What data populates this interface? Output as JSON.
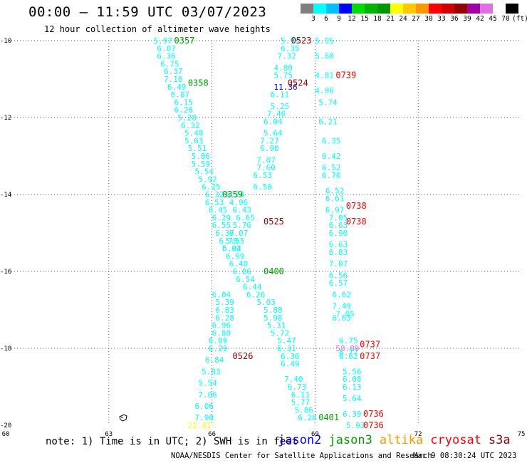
{
  "title": "00:00 – 11:59 UTC 03/07/2023",
  "subtitle": "12 hour collection of altimeter wave heights",
  "legend": {
    "colors": [
      "#7f7f7f",
      "#00ffff",
      "#00c0ff",
      "#0000ff",
      "#00dc00",
      "#00b400",
      "#009600",
      "#ffff00",
      "#ffc800",
      "#ff9600",
      "#ff0000",
      "#d20000",
      "#960000",
      "#a000a0",
      "#e070e0",
      "#ffffff",
      "#000000"
    ],
    "labels": [
      "3",
      "6",
      "9",
      "12",
      "15",
      "18",
      "21",
      "24",
      "27",
      "30",
      "33",
      "36",
      "39",
      "42",
      "45",
      "70",
      "(ft)"
    ]
  },
  "note": "note: 1) Time is in UTC; 2) SWH is in feet",
  "satellites": [
    {
      "name": "jason2",
      "color": "#0000ff"
    },
    {
      "name": "jason3",
      "color": "#00a000"
    },
    {
      "name": "altika",
      "color": "#ff9600"
    },
    {
      "name": "cryosat",
      "color": "#ff0000"
    },
    {
      "name": "s3a",
      "color": "#990000"
    }
  ],
  "credit": "NOAA/NESDIS Center for Satellite Applications and Research",
  "credit_time": "Mar  9 08:30:24 UTC 2023",
  "chart_data": {
    "type": "scatter",
    "xlim": [
      60,
      75
    ],
    "ylim": [
      -20,
      -10
    ],
    "x_ticks": [
      60,
      63,
      66,
      69,
      72,
      75
    ],
    "y_ticks": [
      -10,
      -12,
      -14,
      -16,
      -18,
      -20
    ],
    "grid": true,
    "swh_points": [
      {
        "x": 64.3,
        "y": -10.0,
        "label": "5.97",
        "color": "#00ffff"
      },
      {
        "x": 64.4,
        "y": -10.2,
        "label": "6.07",
        "color": "#00ffff"
      },
      {
        "x": 64.4,
        "y": -10.4,
        "label": "6.36",
        "color": "#00ffff"
      },
      {
        "x": 64.5,
        "y": -10.6,
        "label": "6.75",
        "color": "#00ffff"
      },
      {
        "x": 64.6,
        "y": -10.8,
        "label": "6.37",
        "color": "#00ffff"
      },
      {
        "x": 64.6,
        "y": -11.0,
        "label": "7.10",
        "color": "#00ffff"
      },
      {
        "x": 64.7,
        "y": -11.2,
        "label": "6.49",
        "color": "#00ffff"
      },
      {
        "x": 64.8,
        "y": -11.4,
        "label": "6.87",
        "color": "#00ffff"
      },
      {
        "x": 64.9,
        "y": -11.6,
        "label": "6.15",
        "color": "#00ffff"
      },
      {
        "x": 64.9,
        "y": -11.8,
        "label": "6.26",
        "color": "#00ffff"
      },
      {
        "x": 65.0,
        "y": -12.0,
        "label": "5.28",
        "color": "#00ffff"
      },
      {
        "x": 65.1,
        "y": -12.2,
        "label": "6.32",
        "color": "#00ffff"
      },
      {
        "x": 65.2,
        "y": -12.4,
        "label": "5.48",
        "color": "#00ffff"
      },
      {
        "x": 65.2,
        "y": -12.6,
        "label": "5.63",
        "color": "#00ffff"
      },
      {
        "x": 65.3,
        "y": -12.8,
        "label": "5.51",
        "color": "#00ffff"
      },
      {
        "x": 65.4,
        "y": -13.0,
        "label": "5.86",
        "color": "#00ffff"
      },
      {
        "x": 65.4,
        "y": -13.2,
        "label": "5.59",
        "color": "#00ffff"
      },
      {
        "x": 65.5,
        "y": -13.4,
        "label": "5.54",
        "color": "#00ffff"
      },
      {
        "x": 65.6,
        "y": -13.6,
        "label": "5.92",
        "color": "#00ffff"
      },
      {
        "x": 65.7,
        "y": -13.8,
        "label": "6.25",
        "color": "#00ffff"
      },
      {
        "x": 65.8,
        "y": -14.0,
        "label": "6.32",
        "color": "#00ffff"
      },
      {
        "x": 65.8,
        "y": -14.2,
        "label": "6.53",
        "color": "#00ffff"
      },
      {
        "x": 65.9,
        "y": -14.4,
        "label": "6.45",
        "color": "#00ffff"
      },
      {
        "x": 66.0,
        "y": -14.6,
        "label": "6.29",
        "color": "#00ffff"
      },
      {
        "x": 66.0,
        "y": -14.8,
        "label": "6.55",
        "color": "#00ffff"
      },
      {
        "x": 66.1,
        "y": -15.0,
        "label": "6.37",
        "color": "#00ffff"
      },
      {
        "x": 66.2,
        "y": -15.2,
        "label": "6.70",
        "color": "#00ffff"
      },
      {
        "x": 66.3,
        "y": -15.4,
        "label": "6.82",
        "color": "#00ffff"
      },
      {
        "x": 66.4,
        "y": -15.6,
        "label": "6.99",
        "color": "#00ffff"
      },
      {
        "x": 66.5,
        "y": -15.8,
        "label": "6.40",
        "color": "#00ffff"
      },
      {
        "x": 66.6,
        "y": -16.0,
        "label": "6.86",
        "color": "#00ffff"
      },
      {
        "x": 66.7,
        "y": -16.2,
        "label": "6.54",
        "color": "#00ffff"
      },
      {
        "x": 66.9,
        "y": -16.4,
        "label": "6.44",
        "color": "#00ffff"
      },
      {
        "x": 67.0,
        "y": -16.6,
        "label": "6.26",
        "color": "#00ffff"
      },
      {
        "x": 67.3,
        "y": -16.8,
        "label": "5.03",
        "color": "#00ffff"
      },
      {
        "x": 67.5,
        "y": -17.0,
        "label": "5.88",
        "color": "#00ffff"
      },
      {
        "x": 67.5,
        "y": -17.2,
        "label": "5.98",
        "color": "#00ffff"
      },
      {
        "x": 67.6,
        "y": -17.4,
        "label": "5.31",
        "color": "#00ffff"
      },
      {
        "x": 67.7,
        "y": -17.6,
        "label": "5.72",
        "color": "#00ffff"
      },
      {
        "x": 67.9,
        "y": -17.8,
        "label": "5.47",
        "color": "#00ffff"
      },
      {
        "x": 67.9,
        "y": -18.0,
        "label": "6.31",
        "color": "#00ffff"
      },
      {
        "x": 68.0,
        "y": -18.2,
        "label": "6.36",
        "color": "#00ffff"
      },
      {
        "x": 68.0,
        "y": -18.4,
        "label": "6.49",
        "color": "#00ffff"
      },
      {
        "x": 68.1,
        "y": -18.8,
        "label": "7.40",
        "color": "#00ffff"
      },
      {
        "x": 68.2,
        "y": -19.0,
        "label": "6.73",
        "color": "#00ffff"
      },
      {
        "x": 68.3,
        "y": -19.2,
        "label": "6.11",
        "color": "#00ffff"
      },
      {
        "x": 68.3,
        "y": -19.4,
        "label": "5.77",
        "color": "#00ffff"
      },
      {
        "x": 68.4,
        "y": -19.6,
        "label": "5.86",
        "color": "#00ffff"
      },
      {
        "x": 68.5,
        "y": -19.8,
        "label": "6.28",
        "color": "#00ffff"
      },
      {
        "x": 66.4,
        "y": -14.0,
        "label": "6.74",
        "color": "#00ffff"
      },
      {
        "x": 66.5,
        "y": -14.2,
        "label": "4.96",
        "color": "#00ffff"
      },
      {
        "x": 66.6,
        "y": -14.4,
        "label": "6.43",
        "color": "#00ffff"
      },
      {
        "x": 66.7,
        "y": -14.6,
        "label": "6.65",
        "color": "#00ffff"
      },
      {
        "x": 66.6,
        "y": -14.8,
        "label": "5.76",
        "color": "#00ffff"
      },
      {
        "x": 66.5,
        "y": -15.0,
        "label": "6.07",
        "color": "#00ffff"
      },
      {
        "x": 66.4,
        "y": -15.2,
        "label": "5.55",
        "color": "#00ffff"
      },
      {
        "x": 66.3,
        "y": -15.4,
        "label": "5.94",
        "color": "#00ffff"
      },
      {
        "x": 66.0,
        "y": -16.6,
        "label": "6.04",
        "color": "#00ffff"
      },
      {
        "x": 66.1,
        "y": -16.8,
        "label": "5.39",
        "color": "#00ffff"
      },
      {
        "x": 66.1,
        "y": -17.0,
        "label": "6.83",
        "color": "#00ffff"
      },
      {
        "x": 66.1,
        "y": -17.2,
        "label": "6.28",
        "color": "#00ffff"
      },
      {
        "x": 66.0,
        "y": -17.4,
        "label": "6.96",
        "color": "#00ffff"
      },
      {
        "x": 66.0,
        "y": -17.6,
        "label": "6.80",
        "color": "#00ffff"
      },
      {
        "x": 65.9,
        "y": -17.8,
        "label": "6.09",
        "color": "#00ffff"
      },
      {
        "x": 65.9,
        "y": -18.0,
        "label": "6.29",
        "color": "#00ffff"
      },
      {
        "x": 65.8,
        "y": -18.3,
        "label": "6.84",
        "color": "#00ffff"
      },
      {
        "x": 65.7,
        "y": -18.6,
        "label": "5.83",
        "color": "#00ffff"
      },
      {
        "x": 65.6,
        "y": -18.9,
        "label": "5.54",
        "color": "#00ffff"
      },
      {
        "x": 65.6,
        "y": -19.2,
        "label": "7.06",
        "color": "#00ffff"
      },
      {
        "x": 65.5,
        "y": -19.5,
        "label": "6.06",
        "color": "#00ffff"
      },
      {
        "x": 65.5,
        "y": -19.8,
        "label": "7.90",
        "color": "#00ffff"
      },
      {
        "x": 65.3,
        "y": -20.0,
        "label": "22.81",
        "color": "#ffff00"
      },
      {
        "x": 68.0,
        "y": -10.0,
        "label": "5.95",
        "color": "#00ffff"
      },
      {
        "x": 68.0,
        "y": -10.2,
        "label": "6.35",
        "color": "#00ffff"
      },
      {
        "x": 67.9,
        "y": -10.4,
        "label": "7.32",
        "color": "#00ffff"
      },
      {
        "x": 67.8,
        "y": -10.7,
        "label": "4.80",
        "color": "#00ffff"
      },
      {
        "x": 67.8,
        "y": -10.9,
        "label": "5.75",
        "color": "#00ffff"
      },
      {
        "x": 67.8,
        "y": -11.2,
        "label": "11.36",
        "color": "#0000ff"
      },
      {
        "x": 67.7,
        "y": -11.4,
        "label": "6.11",
        "color": "#00ffff"
      },
      {
        "x": 67.7,
        "y": -11.7,
        "label": "5.25",
        "color": "#00ffff"
      },
      {
        "x": 67.6,
        "y": -11.9,
        "label": "7.46",
        "color": "#00ffff"
      },
      {
        "x": 67.5,
        "y": -12.1,
        "label": "6.04",
        "color": "#00ffff"
      },
      {
        "x": 67.5,
        "y": -12.4,
        "label": "5.64",
        "color": "#00ffff"
      },
      {
        "x": 67.4,
        "y": -12.6,
        "label": "7.27",
        "color": "#00ffff"
      },
      {
        "x": 67.4,
        "y": -12.8,
        "label": "6.90",
        "color": "#00ffff"
      },
      {
        "x": 67.3,
        "y": -13.1,
        "label": "7.07",
        "color": "#00ffff"
      },
      {
        "x": 67.3,
        "y": -13.3,
        "label": "7.60",
        "color": "#00ffff"
      },
      {
        "x": 67.2,
        "y": -13.5,
        "label": "6.53",
        "color": "#00ffff"
      },
      {
        "x": 67.2,
        "y": -13.8,
        "label": "6.50",
        "color": "#00ffff"
      },
      {
        "x": 69.0,
        "y": -10.0,
        "label": "5.95",
        "color": "#00ffff"
      },
      {
        "x": 69.0,
        "y": -10.4,
        "label": "5.60",
        "color": "#00ffff"
      },
      {
        "x": 69.0,
        "y": -10.9,
        "label": "4.81",
        "color": "#00ffff"
      },
      {
        "x": 69.0,
        "y": -11.3,
        "label": "4.96",
        "color": "#00ffff"
      },
      {
        "x": 69.1,
        "y": -11.6,
        "label": "5.74",
        "color": "#00ffff"
      },
      {
        "x": 69.1,
        "y": -12.1,
        "label": "6.21",
        "color": "#00ffff"
      },
      {
        "x": 69.2,
        "y": -12.6,
        "label": "6.35",
        "color": "#00ffff"
      },
      {
        "x": 69.2,
        "y": -13.0,
        "label": "6.42",
        "color": "#00ffff"
      },
      {
        "x": 69.2,
        "y": -13.3,
        "label": "6.52",
        "color": "#00ffff"
      },
      {
        "x": 69.2,
        "y": -13.5,
        "label": "6.76",
        "color": "#00ffff"
      },
      {
        "x": 69.3,
        "y": -13.9,
        "label": "6.52",
        "color": "#00ffff"
      },
      {
        "x": 69.3,
        "y": -14.1,
        "label": "6.61",
        "color": "#00ffff"
      },
      {
        "x": 69.3,
        "y": -14.4,
        "label": "6.97",
        "color": "#00ffff"
      },
      {
        "x": 69.4,
        "y": -14.6,
        "label": "7.05",
        "color": "#00ffff"
      },
      {
        "x": 69.4,
        "y": -14.8,
        "label": "6.63",
        "color": "#00ffff"
      },
      {
        "x": 69.4,
        "y": -15.0,
        "label": "6.90",
        "color": "#00ffff"
      },
      {
        "x": 69.4,
        "y": -15.3,
        "label": "6.63",
        "color": "#00ffff"
      },
      {
        "x": 69.4,
        "y": -15.5,
        "label": "6.83",
        "color": "#00ffff"
      },
      {
        "x": 69.4,
        "y": -15.8,
        "label": "7.07",
        "color": "#00ffff"
      },
      {
        "x": 69.4,
        "y": -16.1,
        "label": "6.56",
        "color": "#00ffff"
      },
      {
        "x": 69.4,
        "y": -16.3,
        "label": "6.57",
        "color": "#00ffff"
      },
      {
        "x": 69.5,
        "y": -16.6,
        "label": "6.62",
        "color": "#00ffff"
      },
      {
        "x": 69.5,
        "y": -16.9,
        "label": "7.49",
        "color": "#00ffff"
      },
      {
        "x": 69.6,
        "y": -17.1,
        "label": "7.05",
        "color": "#00ffff"
      },
      {
        "x": 69.5,
        "y": -17.2,
        "label": "6.63",
        "color": "#00ffff"
      },
      {
        "x": 69.7,
        "y": -17.8,
        "label": "6.75",
        "color": "#00ffff"
      },
      {
        "x": 69.6,
        "y": -18.0,
        "label": "58.89",
        "color": "#e070e0"
      },
      {
        "x": 69.7,
        "y": -18.1,
        "label": "6.77",
        "color": "#00ffff"
      },
      {
        "x": 69.7,
        "y": -18.2,
        "label": "6.62",
        "color": "#00ffff"
      },
      {
        "x": 69.8,
        "y": -18.6,
        "label": "5.56",
        "color": "#00ffff"
      },
      {
        "x": 69.8,
        "y": -18.8,
        "label": "6.08",
        "color": "#00ffff"
      },
      {
        "x": 69.8,
        "y": -19.0,
        "label": "6.13",
        "color": "#00ffff"
      },
      {
        "x": 69.8,
        "y": -19.3,
        "label": "5.64",
        "color": "#00ffff"
      },
      {
        "x": 69.8,
        "y": -19.7,
        "label": "6.39",
        "color": "#00ffff"
      },
      {
        "x": 69.9,
        "y": -20.0,
        "label": "5.93",
        "color": "#00ffff"
      }
    ],
    "time_labels": [
      {
        "x": 64.9,
        "y": -10.0,
        "label": "0357",
        "color": "#00a000"
      },
      {
        "x": 65.3,
        "y": -11.1,
        "label": "0358",
        "color": "#00a000"
      },
      {
        "x": 66.3,
        "y": -14.0,
        "label": "0359",
        "color": "#00a000"
      },
      {
        "x": 67.5,
        "y": -16.0,
        "label": "0400",
        "color": "#00a000"
      },
      {
        "x": 69.1,
        "y": -19.8,
        "label": "0401",
        "color": "#00a000"
      },
      {
        "x": 68.3,
        "y": -10.0,
        "label": "0523",
        "color": "#990000"
      },
      {
        "x": 68.2,
        "y": -11.1,
        "label": "0524",
        "color": "#990000"
      },
      {
        "x": 67.5,
        "y": -14.7,
        "label": "0525",
        "color": "#990000"
      },
      {
        "x": 66.6,
        "y": -18.2,
        "label": "0526",
        "color": "#990000"
      },
      {
        "x": 69.6,
        "y": -10.9,
        "label": "0739",
        "color": "#ff0000"
      },
      {
        "x": 69.9,
        "y": -14.3,
        "label": "0738",
        "color": "#ff0000"
      },
      {
        "x": 69.9,
        "y": -14.7,
        "label": "0738",
        "color": "#ff0000"
      },
      {
        "x": 70.3,
        "y": -17.9,
        "label": "0737",
        "color": "#ff0000"
      },
      {
        "x": 70.3,
        "y": -18.2,
        "label": "0737",
        "color": "#ff0000"
      },
      {
        "x": 70.4,
        "y": -19.7,
        "label": "0736",
        "color": "#ff0000"
      },
      {
        "x": 70.4,
        "y": -20.0,
        "label": "0736",
        "color": "#ff0000"
      }
    ]
  }
}
